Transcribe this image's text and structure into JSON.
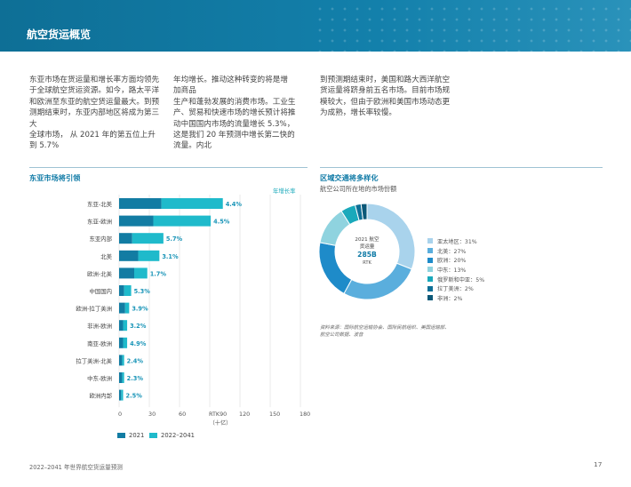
{
  "header": {
    "title": "航空货运概览"
  },
  "body_text": {
    "col1": "东亚市场在货运量和增长率方面均领先\n于全球航空货运资源。如今，路太平洋\n和欧洲至东亚的航空货运量最大。到预\n测期结束时，东亚内部地区将成为第三\n大\n全球市场， 从 2021 年的第五位上升\n到 5.7%",
    "col2": "年均增长。推动这种转变的将是增\n加商品\n生产和蓬勃发展的消费市场。工业生\n产、贸易和快速市场的增长预计将推\n动中国国内市场的流量增长 5.3%，\n这是我们 20 年预测中增长第二快的\n流量。内北",
    "col3": "到预测期结束时，美国和路大西洋航空\n货运量将跻身前五名市场。目前市场规\n模较大，但由于欧洲和美国市场动态更\n为成熟，增长率较慢。"
  },
  "left_section": {
    "title": "东亚市场将引领",
    "growth_header": "年增长率",
    "axis_unit": "（十亿）"
  },
  "right_section": {
    "title": "区域交通将多样化",
    "subtitle": "航空公司所在地的市场份额"
  },
  "donut_center": {
    "line1": "2021 航空",
    "line2": "货运量",
    "value": "285B",
    "unit": "RTK"
  },
  "donut_legend": [
    {
      "label": "亚太地区：31%",
      "color": "#a9d3ec"
    },
    {
      "label": "北美：27%",
      "color": "#5aaedd"
    },
    {
      "label": "欧洲：20%",
      "color": "#1e8bc9"
    },
    {
      "label": "中东：13%",
      "color": "#8fd3df"
    },
    {
      "label": "俄罗斯和中亚：5%",
      "color": "#1aa9bb"
    },
    {
      "label": "拉丁美洲：2%",
      "color": "#0e6f96"
    },
    {
      "label": "非洲：2%",
      "color": "#0b5878"
    }
  ],
  "source_text": "资料来源：国际航空运输协会、国际民航组织、美国运输部、航空公司数据、波音",
  "bar_legend": {
    "s1": "2021",
    "s2": "2022–2041",
    "c1": "#127ca3",
    "c2": "#1fbacb"
  },
  "footer": {
    "left": "2022–2041 年世界航空货运量预测",
    "page": "17"
  },
  "chart_data": [
    {
      "type": "bar",
      "orientation": "horizontal",
      "stacked": true,
      "categories": [
        "东亚-北美",
        "东亚-欧洲",
        "东亚内部",
        "北美",
        "欧洲-北美",
        "中国国内",
        "欧洲-拉丁美洲",
        "非洲-欧洲",
        "南亚-欧洲",
        "拉丁美洲-北美",
        "中东-欧洲",
        "欧洲内部"
      ],
      "series": [
        {
          "name": "2021",
          "values": [
            42,
            34,
            13,
            19,
            15,
            5,
            6,
            4,
            4,
            3,
            3,
            2
          ]
        },
        {
          "name": "2022–2041",
          "values": [
            61,
            57,
            31,
            21,
            13,
            7,
            4,
            4,
            4,
            2,
            2,
            2
          ]
        }
      ],
      "growth_rates": [
        "4.4%",
        "4.5%",
        "5.7%",
        "3.1%",
        "1.7%",
        "5.3%",
        "3.9%",
        "3.2%",
        "4.9%",
        "2.4%",
        "2.3%",
        "2.5%"
      ],
      "xticks": [
        "0",
        "30",
        "60",
        "RTK90",
        "120",
        "150",
        "180"
      ],
      "xlim": [
        0,
        180
      ]
    },
    {
      "type": "pie",
      "donut": true,
      "categories": [
        "亚太地区",
        "北美",
        "欧洲",
        "中东",
        "俄罗斯和中亚",
        "拉丁美洲",
        "非洲"
      ],
      "values": [
        31,
        27,
        20,
        13,
        5,
        2,
        2
      ]
    }
  ]
}
